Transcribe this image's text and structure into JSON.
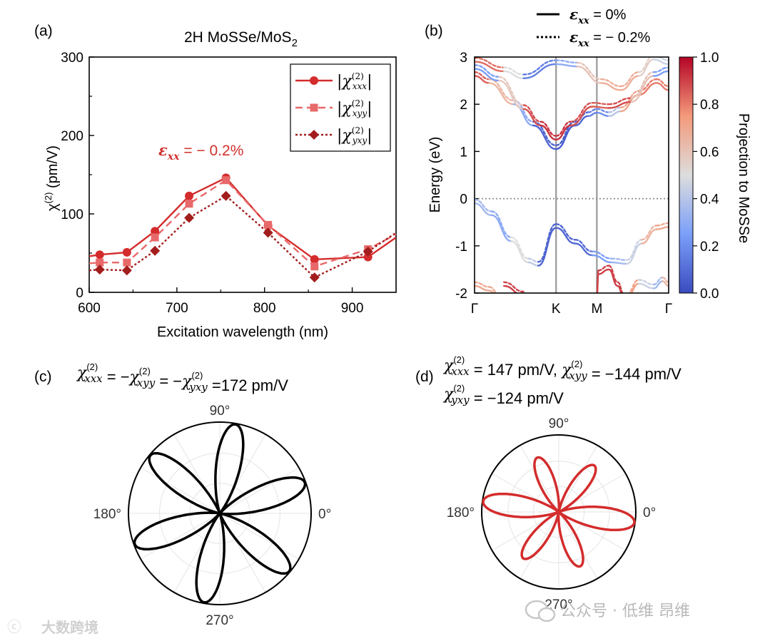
{
  "chart_data": [
    {
      "type": "line",
      "panel_label": "(a)",
      "title": "2H MoSSe/MoS",
      "title_sub": "2",
      "xlabel": "Excitation wavelength (nm)",
      "ylabel_main": "χ",
      "ylabel_sup": "(2)",
      "ylabel_unit": " (pm/V)",
      "xlim": [
        600,
        950
      ],
      "ylim": [
        0,
        300
      ],
      "xticks": [
        600,
        700,
        800,
        900
      ],
      "yticks": [
        0,
        100,
        200,
        300
      ],
      "annotation_eps": "ε",
      "annotation_sub": "xx",
      "annotation_rest": " = − 0.2%",
      "annotation_color": "#d0312d",
      "legend_position": "top-right",
      "series": [
        {
          "name": "|χ(2)xxx|",
          "legend_sup": "(2)",
          "legend_sub": "xxx",
          "marker": "circle",
          "line": "solid",
          "color": "#d42c2c",
          "x": [
            612,
            643,
            675,
            714,
            756,
            804,
            857,
            918
          ],
          "y": [
            48,
            51,
            78,
            123,
            146,
            85,
            42,
            45
          ],
          "tail": [
            [
              600,
              46
            ],
            [
              950,
              70
            ]
          ]
        },
        {
          "name": "|χ(2)xyy|",
          "legend_sup": "(2)",
          "legend_sub": "xyy",
          "marker": "square",
          "line": "dashed",
          "color": "#e8696a",
          "x": [
            612,
            643,
            675,
            714,
            756,
            804,
            857,
            918
          ],
          "y": [
            38,
            38,
            70,
            113,
            143,
            86,
            33,
            55
          ],
          "tail": [
            [
              600,
              37
            ],
            [
              950,
              74
            ]
          ]
        },
        {
          "name": "|χ(2)yxy|",
          "legend_sup": "(2)",
          "legend_sub": "yxy",
          "marker": "diamond",
          "line": "dotted",
          "color": "#a31d1d",
          "x": [
            612,
            643,
            675,
            714,
            756,
            804,
            857,
            918
          ],
          "y": [
            29,
            28,
            53,
            95,
            123,
            76,
            19,
            52
          ],
          "tail": [
            [
              600,
              28
            ],
            [
              950,
              76
            ]
          ]
        }
      ]
    },
    {
      "type": "line",
      "panel_label": "(b)",
      "ylabel": "Energy (eV)",
      "ylim": [
        -2,
        3
      ],
      "yticks": [
        -2,
        -1,
        0,
        1,
        2,
        3
      ],
      "kpoints": [
        "Γ",
        "K",
        "M",
        "Γ"
      ],
      "legend": [
        {
          "style": "solid",
          "eps": "ε",
          "sub": "xx",
          "text": " = 0%"
        },
        {
          "style": "dotted",
          "eps": "ε",
          "sub": "xx",
          "text": " = − 0.2%"
        }
      ],
      "colorbar_label": "Projection to MoSSe",
      "colorbar_ticks": [
        "0.0",
        "0.2",
        "0.4",
        "0.6",
        "0.8",
        "1.0"
      ],
      "bands": [
        {
          "name": "CB1",
          "path": [
            [
              0,
              2.6
            ],
            [
              0.06,
              2.45
            ],
            [
              0.16,
              2.0
            ],
            [
              0.24,
              1.55
            ],
            [
              0.333,
              1.05
            ],
            [
              0.42,
              1.55
            ],
            [
              0.48,
              1.75
            ],
            [
              0.52,
              1.82
            ],
            [
              0.6,
              1.75
            ],
            [
              0.68,
              1.85
            ],
            [
              0.8,
              2.2
            ],
            [
              0.92,
              2.45
            ],
            [
              1,
              2.3
            ]
          ],
          "proj": [
            0.9,
            0.8,
            0.5,
            0.1,
            0.05,
            0.05,
            0.1,
            0.2,
            0.2,
            0.6,
            0.8,
            0.8,
            0.8
          ]
        },
        {
          "name": "CB2",
          "path": [
            [
              0,
              2.75
            ],
            [
              0.1,
              2.5
            ],
            [
              0.2,
              1.9
            ],
            [
              0.27,
              1.55
            ],
            [
              0.333,
              1.25
            ],
            [
              0.4,
              1.55
            ],
            [
              0.5,
              1.95
            ],
            [
              0.6,
              1.92
            ],
            [
              0.75,
              2.05
            ],
            [
              0.9,
              2.6
            ],
            [
              1,
              2.7
            ]
          ],
          "proj": [
            0.2,
            0.3,
            0.85,
            0.9,
            0.95,
            0.9,
            0.85,
            0.85,
            0.9,
            0.3,
            0.2
          ]
        },
        {
          "name": "CB3",
          "path": [
            [
              0,
              2.9
            ],
            [
              0.12,
              2.7
            ],
            [
              0.2,
              2.55
            ],
            [
              0.333,
              2.85
            ],
            [
              0.43,
              2.8
            ],
            [
              0.55,
              2.45
            ],
            [
              0.68,
              2.3
            ],
            [
              0.8,
              2.6
            ],
            [
              0.9,
              2.95
            ],
            [
              1,
              2.85
            ]
          ],
          "proj": [
            0.85,
            0.8,
            0.2,
            0.1,
            0.5,
            0.7,
            0.65,
            0.7,
            0.4,
            0.5
          ]
        },
        {
          "name": "VB1",
          "path": [
            [
              0,
              -0.1
            ],
            [
              0.07,
              -0.35
            ],
            [
              0.15,
              -0.9
            ],
            [
              0.22,
              -1.35
            ],
            [
              0.26,
              -1.42
            ],
            [
              0.333,
              -0.62
            ],
            [
              0.42,
              -0.95
            ],
            [
              0.5,
              -1.2
            ],
            [
              0.62,
              -1.35
            ],
            [
              0.72,
              -1.38
            ],
            [
              0.82,
              -0.95
            ],
            [
              0.92,
              -0.65
            ],
            [
              1,
              -0.6
            ]
          ],
          "proj": [
            0.35,
            0.35,
            0.25,
            0.75,
            0.1,
            0.05,
            0.1,
            0.1,
            0.4,
            0.3,
            0.6,
            0.7,
            0.7
          ]
        },
        {
          "name": "VB2",
          "path": [
            [
              0.12,
              -1.85
            ],
            [
              0.2,
              -2.05
            ]
          ],
          "proj": [
            0.9,
            0.9
          ]
        },
        {
          "name": "VB3",
          "path": [
            [
              0,
              -1.85
            ],
            [
              0.06,
              -1.95
            ],
            [
              0.1,
              -2.1
            ]
          ],
          "proj": [
            0.7,
            0.7,
            0.7
          ]
        },
        {
          "name": "VB4",
          "path": [
            [
              0.52,
              -2.1
            ],
            [
              0.53,
              -1.6
            ],
            [
              0.6,
              -1.5
            ],
            [
              0.66,
              -1.85
            ],
            [
              0.7,
              -2.1
            ]
          ],
          "proj": [
            0.9,
            0.9,
            0.9,
            0.9,
            0.9
          ]
        },
        {
          "name": "VB5",
          "path": [
            [
              0.72,
              -2.1
            ],
            [
              0.8,
              -1.8
            ],
            [
              0.9,
              -1.9
            ],
            [
              0.96,
              -1.75
            ],
            [
              1,
              -1.85
            ]
          ],
          "proj": [
            0.75,
            0.7,
            0.2,
            0.5,
            0.8
          ]
        }
      ]
    },
    {
      "type": "polar",
      "panel_label": "(c)",
      "formula": [
        {
          "t": "χ",
          "sup": "(2)",
          "sub": "xxx"
        },
        {
          "op": " = −"
        },
        {
          "t": "χ",
          "sup": "(2)",
          "sub": "xyy"
        },
        {
          "op": " = −"
        },
        {
          "t": "χ",
          "sup": "(2)",
          "sub": "yxy"
        },
        {
          "op": " =172 pm/V"
        }
      ],
      "coefficients": {
        "xxx": 172,
        "xyy": -172,
        "yxy": -172
      },
      "angle_labels": [
        "0°",
        "90°",
        "180°",
        "270°"
      ],
      "color": "#000000"
    },
    {
      "type": "polar",
      "panel_label": "(d)",
      "formula_line1": [
        {
          "t": "χ",
          "sup": "(2)",
          "sub": "xxx"
        },
        {
          "op": " = 147 pm/V, "
        },
        {
          "t": "χ",
          "sup": "(2)",
          "sub": "xyy"
        },
        {
          "op": " = −144 pm/V"
        }
      ],
      "formula_line2": [
        {
          "t": "χ",
          "sup": "(2)",
          "sub": "yxy"
        },
        {
          "op": " = −124 pm/V"
        }
      ],
      "coefficients": {
        "xxx": 147,
        "xyy": -144,
        "yxy": -124
      },
      "angle_labels": [
        "0°",
        "90°",
        "180°",
        "270°"
      ],
      "color": "#d42c2c"
    }
  ],
  "watermarks": {
    "bottom_left": "大数跨境",
    "bottom_right": "公众号 · 低维 昂维"
  }
}
